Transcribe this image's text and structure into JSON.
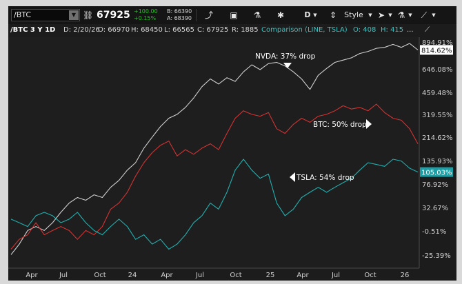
{
  "toolbar": {
    "symbol": "/BTC",
    "price": "67925",
    "change_abs": "+100.00",
    "change_pct": "+0.15%",
    "bid": "B: 66390",
    "ask": "A: 68390",
    "style_label": "Style",
    "drawing_label": "D"
  },
  "header": {
    "symbol_tag": "/BTC 3 Y 1D",
    "date": "D: 2/20/26",
    "open": "O: 66970",
    "high": "H: 68450",
    "low": "L: 66565",
    "close": "C: 67925",
    "range": "R: 1885",
    "comparison": "Comparison (LINE, TSLA)",
    "cmp_open": "O: 408",
    "cmp_high": "H: 415",
    "ellipsis": "..."
  },
  "chart_data": {
    "type": "line",
    "x_ticks": [
      "Apr",
      "Jul",
      "Oct",
      "24",
      "Apr",
      "Jul",
      "Oct",
      "25",
      "Apr",
      "Jul",
      "Oct",
      "26"
    ],
    "y_ticks": [
      "894.91%",
      "646.08%",
      "459.48%",
      "319.55%",
      "214.62%",
      "135.93%",
      "76.92%",
      "32.67%",
      "-0.51%",
      "-25.39%"
    ],
    "current_labels": [
      {
        "series": "NVDA",
        "value": "814.62%",
        "color": "#ffffff"
      },
      {
        "series": "TSLA",
        "value": "105.03%",
        "color": "#33c4c4"
      }
    ],
    "series": [
      {
        "name": "NVDA",
        "color": "#d0d0d0",
        "values": [
          -25,
          -15,
          0,
          5,
          0,
          10,
          25,
          40,
          50,
          45,
          55,
          50,
          70,
          85,
          110,
          130,
          175,
          215,
          260,
          300,
          320,
          360,
          420,
          500,
          560,
          520,
          570,
          540,
          620,
          680,
          640,
          690,
          700,
          670,
          620,
          560,
          480,
          590,
          650,
          700,
          720,
          740,
          780,
          800,
          830,
          840,
          870,
          840,
          880,
          814.62
        ]
      },
      {
        "name": "BTC",
        "color": "#d63232",
        "values": [
          -20,
          -10,
          -5,
          10,
          -5,
          0,
          5,
          0,
          -10,
          0,
          -5,
          5,
          30,
          40,
          60,
          95,
          130,
          160,
          185,
          200,
          150,
          170,
          155,
          175,
          190,
          170,
          230,
          300,
          340,
          320,
          310,
          330,
          250,
          230,
          270,
          300,
          280,
          310,
          320,
          340,
          370,
          350,
          360,
          340,
          380,
          330,
          300,
          290,
          250,
          190
        ]
      },
      {
        "name": "TSLA",
        "color": "#20b1b1",
        "values": [
          15,
          10,
          5,
          20,
          25,
          20,
          10,
          15,
          25,
          10,
          0,
          -5,
          5,
          15,
          5,
          -10,
          -5,
          -15,
          -10,
          -20,
          -15,
          -5,
          10,
          20,
          40,
          30,
          60,
          110,
          140,
          110,
          90,
          100,
          40,
          20,
          30,
          50,
          60,
          70,
          60,
          70,
          80,
          90,
          110,
          130,
          125,
          120,
          140,
          135,
          115,
          105.03
        ]
      }
    ],
    "annotations": [
      {
        "text": "NVDA: 37% drop",
        "marker": "down"
      },
      {
        "text": "BTC: 50% drop",
        "marker": "right"
      },
      {
        "text": "TSLA: 54% drop",
        "marker": "left"
      }
    ]
  }
}
